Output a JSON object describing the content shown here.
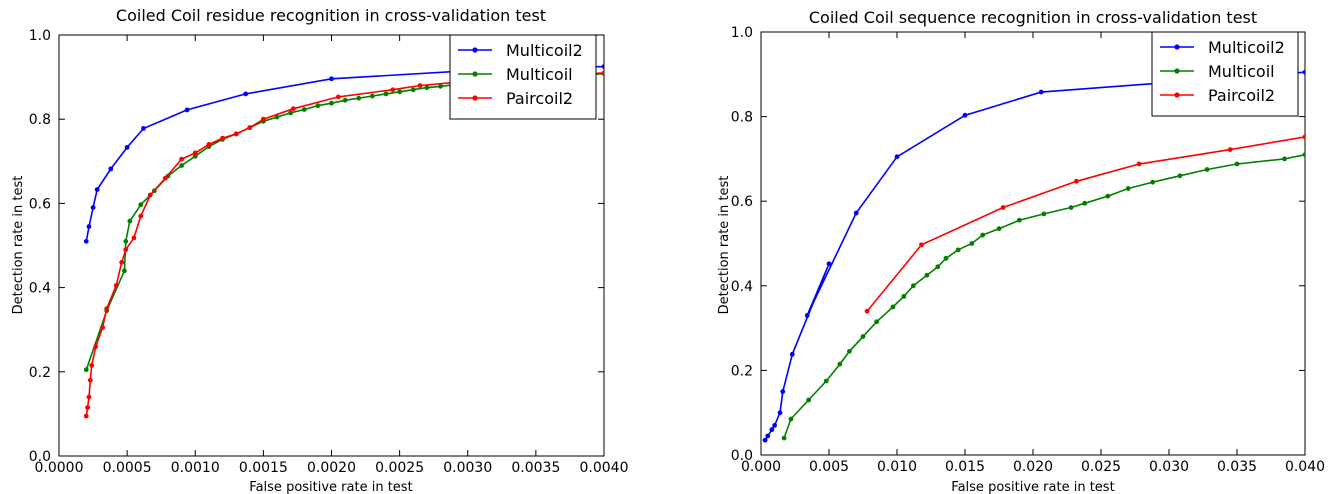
{
  "chart_data": [
    {
      "type": "line",
      "title": "Coiled Coil residue recognition in cross-validation test",
      "xlabel": "False positive rate in test",
      "ylabel": "Detection rate in test",
      "xlim": [
        0,
        0.004
      ],
      "ylim": [
        0,
        1.0
      ],
      "xticks": [
        "0.0000",
        "0.0005",
        "0.0010",
        "0.0015",
        "0.0020",
        "0.0025",
        "0.0030",
        "0.0035",
        "0.0040"
      ],
      "yticks": [
        "0.0",
        "0.2",
        "0.4",
        "0.6",
        "0.8",
        "1.0"
      ],
      "legend_position": "top-right",
      "series": [
        {
          "name": "Multicoil2",
          "color": "#0000ff",
          "x": [
            0.0002,
            0.00022,
            0.00025,
            0.00028,
            0.00038,
            0.0005,
            0.00062,
            0.00094,
            0.00137,
            0.002,
            0.0033,
            0.004
          ],
          "y": [
            0.51,
            0.545,
            0.59,
            0.633,
            0.682,
            0.733,
            0.778,
            0.822,
            0.86,
            0.896,
            0.921,
            0.925
          ]
        },
        {
          "name": "Multicoil",
          "color": "#008000",
          "x": [
            0.0002,
            0.00035,
            0.00048,
            0.00049,
            0.00052,
            0.0006,
            0.0007,
            0.0008,
            0.0009,
            0.001,
            0.0011,
            0.0012,
            0.0013,
            0.0014,
            0.0015,
            0.0016,
            0.0017,
            0.0018,
            0.0019,
            0.002,
            0.0021,
            0.0022,
            0.0023,
            0.0024,
            0.0025,
            0.0026,
            0.0027,
            0.0028,
            0.0029,
            0.003,
            0.0031,
            0.0032,
            0.0033,
            0.0034,
            0.0035,
            0.0036,
            0.0037,
            0.0038,
            0.0039,
            0.004
          ],
          "y": [
            0.205,
            0.345,
            0.44,
            0.51,
            0.558,
            0.597,
            0.63,
            0.665,
            0.69,
            0.712,
            0.735,
            0.752,
            0.765,
            0.78,
            0.795,
            0.805,
            0.815,
            0.823,
            0.832,
            0.838,
            0.845,
            0.85,
            0.855,
            0.86,
            0.865,
            0.87,
            0.875,
            0.878,
            0.882,
            0.885,
            0.888,
            0.891,
            0.894,
            0.896,
            0.898,
            0.9,
            0.902,
            0.904,
            0.906,
            0.908
          ]
        },
        {
          "name": "Paircoil2",
          "color": "#ff0000",
          "x": [
            0.0002,
            0.00021,
            0.00022,
            0.00023,
            0.00024,
            0.00027,
            0.00032,
            0.00035,
            0.00042,
            0.00046,
            0.00049,
            0.00055,
            0.0006,
            0.00067,
            0.00078,
            0.0009,
            0.001,
            0.0011,
            0.0012,
            0.0013,
            0.0014,
            0.0015,
            0.00172,
            0.00205,
            0.00245,
            0.00265,
            0.003,
            0.0034,
            0.004
          ],
          "y": [
            0.095,
            0.115,
            0.14,
            0.18,
            0.215,
            0.26,
            0.305,
            0.35,
            0.405,
            0.46,
            0.49,
            0.518,
            0.57,
            0.62,
            0.66,
            0.705,
            0.72,
            0.74,
            0.755,
            0.765,
            0.78,
            0.8,
            0.825,
            0.853,
            0.87,
            0.88,
            0.89,
            0.9,
            0.91
          ]
        }
      ]
    },
    {
      "type": "line",
      "title": "Coiled Coil sequence recognition in cross-validation test",
      "xlabel": "False positive rate in test",
      "ylabel": "Detection rate in test",
      "xlim": [
        0,
        0.04
      ],
      "ylim": [
        0,
        1.0
      ],
      "xticks": [
        "0.000",
        "0.005",
        "0.010",
        "0.015",
        "0.020",
        "0.025",
        "0.030",
        "0.035",
        "0.040"
      ],
      "yticks": [
        "0.0",
        "0.2",
        "0.4",
        "0.6",
        "0.8",
        "1.0"
      ],
      "legend_position": "top-right",
      "series": [
        {
          "name": "Multicoil2",
          "color": "#0000ff",
          "x": [
            0.0003,
            0.0005,
            0.0008,
            0.001,
            0.0014,
            0.0016,
            0.0023,
            0.005,
            0.0034,
            0.007,
            0.01,
            0.015,
            0.0206,
            0.04
          ],
          "y": [
            0.035,
            0.045,
            0.06,
            0.07,
            0.1,
            0.15,
            0.238,
            0.452,
            0.33,
            0.572,
            0.705,
            0.803,
            0.858,
            0.905
          ]
        },
        {
          "name": "Multicoil",
          "color": "#008000",
          "x": [
            0.0017,
            0.0022,
            0.0035,
            0.0048,
            0.0058,
            0.0065,
            0.0075,
            0.0085,
            0.0097,
            0.0105,
            0.0112,
            0.0122,
            0.013,
            0.0136,
            0.0145,
            0.0155,
            0.0163,
            0.0175,
            0.019,
            0.0208,
            0.0228,
            0.0238,
            0.0255,
            0.027,
            0.0288,
            0.0308,
            0.0328,
            0.035,
            0.0385,
            0.04
          ],
          "y": [
            0.04,
            0.085,
            0.13,
            0.175,
            0.215,
            0.245,
            0.28,
            0.315,
            0.35,
            0.375,
            0.4,
            0.425,
            0.445,
            0.465,
            0.485,
            0.5,
            0.52,
            0.535,
            0.555,
            0.57,
            0.585,
            0.595,
            0.612,
            0.63,
            0.645,
            0.66,
            0.675,
            0.688,
            0.7,
            0.71
          ]
        },
        {
          "name": "Paircoil2",
          "color": "#ff0000",
          "x": [
            0.0078,
            0.0118,
            0.0178,
            0.0232,
            0.0278,
            0.0345,
            0.04
          ],
          "y": [
            0.34,
            0.497,
            0.585,
            0.647,
            0.688,
            0.722,
            0.752
          ]
        }
      ]
    }
  ]
}
